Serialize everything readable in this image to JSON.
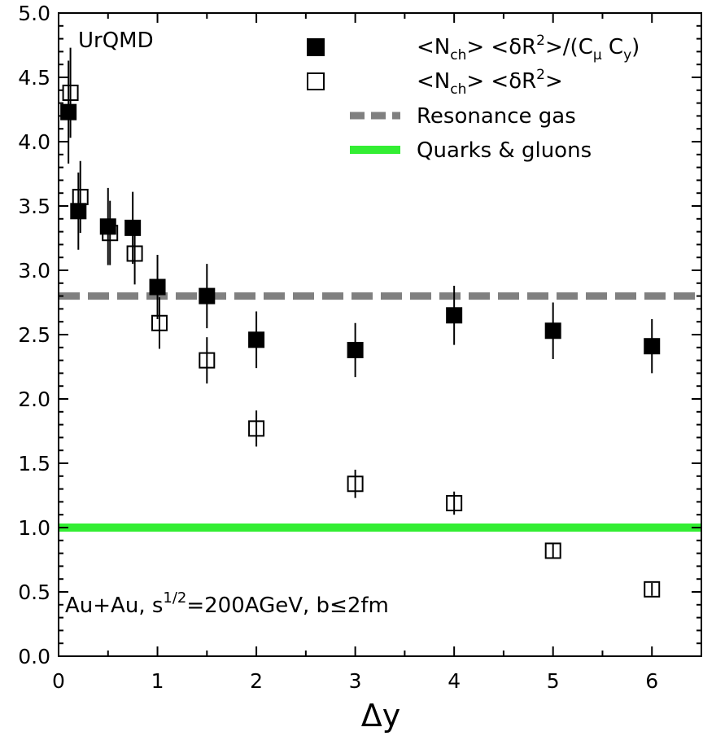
{
  "chart_data": {
    "type": "scatter",
    "title": "",
    "xlabel": "Δy",
    "ylabel": "",
    "xlim": [
      0,
      6.5
    ],
    "ylim": [
      0,
      5
    ],
    "xticks": [
      "0",
      "1",
      "2",
      "3",
      "4",
      "5",
      "6"
    ],
    "yticks": [
      "0.0",
      "0.5",
      "1.0",
      "1.5",
      "2.0",
      "2.5",
      "3.0",
      "3.5",
      "4.0",
      "4.5",
      "5.0"
    ],
    "annotations": {
      "model": "UrQMD",
      "system_prefix": "Au+Au, s",
      "system_sup": "1/2",
      "system_mid": "=200AGeV, b",
      "system_leq": "≤",
      "system_suffix": "2fm"
    },
    "series": [
      {
        "name": "<Nch> <δR2>/(Cμ Cy)",
        "marker": "filled-square",
        "color": "#000000",
        "x": [
          0.1,
          0.2,
          0.5,
          0.75,
          1.0,
          1.5,
          2.0,
          3.0,
          4.0,
          5.0,
          6.0
        ],
        "y": [
          4.23,
          3.46,
          3.34,
          3.33,
          2.87,
          2.8,
          2.46,
          2.38,
          2.65,
          2.53,
          2.41
        ],
        "err": [
          0.4,
          0.3,
          0.3,
          0.28,
          0.25,
          0.25,
          0.22,
          0.21,
          0.23,
          0.22,
          0.21
        ]
      },
      {
        "name": "<Nch> <δR2>",
        "marker": "open-square",
        "color": "#000000",
        "x": [
          0.12,
          0.22,
          0.52,
          0.77,
          1.02,
          1.5,
          2.0,
          3.0,
          4.0,
          5.0,
          6.0
        ],
        "y": [
          4.38,
          3.57,
          3.29,
          3.13,
          2.59,
          2.3,
          1.77,
          1.34,
          1.19,
          0.82,
          0.52
        ],
        "err": [
          0.35,
          0.28,
          0.25,
          0.24,
          0.2,
          0.18,
          0.14,
          0.11,
          0.09,
          0.06,
          0.05
        ]
      }
    ],
    "reference_lines": [
      {
        "name": "Resonance gas",
        "y": 2.8,
        "color": "#808080",
        "style": "dashed"
      },
      {
        "name": "Quarks & gluons",
        "y": 1.0,
        "color": "#33ee33",
        "style": "solid"
      }
    ],
    "legend": {
      "placement": "top-right",
      "entries": [
        {
          "series": 0,
          "parts": [
            [
              "t",
              "<N"
            ],
            [
              "sub",
              "ch"
            ],
            [
              "t",
              "> <δR"
            ],
            [
              "sup",
              "2"
            ],
            [
              "t",
              ">/(C"
            ],
            [
              "sub",
              "μ"
            ],
            [
              "t",
              " C"
            ],
            [
              "sub",
              "y"
            ],
            [
              "t",
              ")"
            ]
          ]
        },
        {
          "series": 1,
          "parts": [
            [
              "t",
              "<N"
            ],
            [
              "sub",
              "ch"
            ],
            [
              "t",
              "> <δR"
            ],
            [
              "sup",
              "2"
            ],
            [
              "t",
              ">"
            ]
          ]
        },
        {
          "line": 0,
          "label": "Resonance gas"
        },
        {
          "line": 1,
          "label": "Quarks & gluons"
        }
      ]
    },
    "grid": false
  }
}
